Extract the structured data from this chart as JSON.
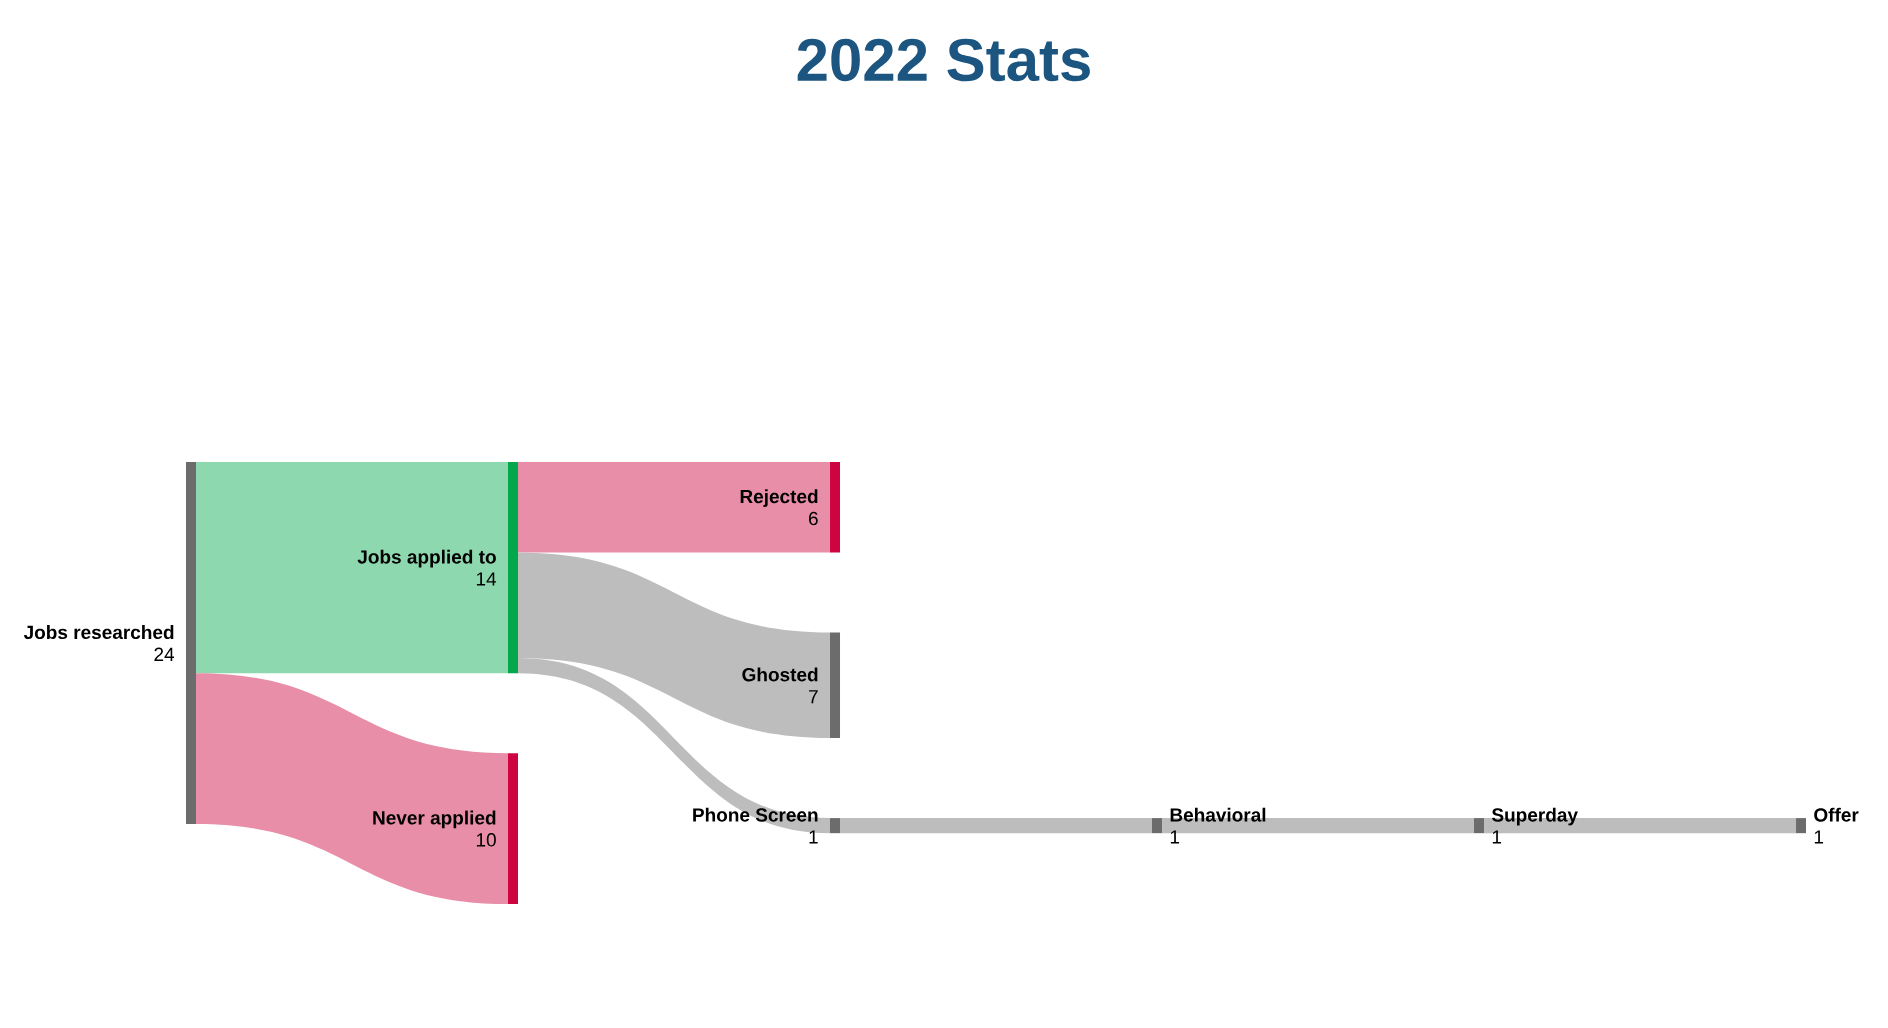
{
  "chart_data": {
    "type": "other",
    "title": "2022 Stats",
    "categories": [
      "Jobs researched",
      "Jobs applied to",
      "Never applied",
      "Rejected",
      "Ghosted",
      "Phone Screen",
      "Behavioral",
      "Superday",
      "Offer"
    ],
    "values": [
      24,
      14,
      10,
      6,
      7,
      1,
      1,
      1,
      1
    ],
    "value_labels": [
      "24",
      "14",
      "10",
      "6",
      "7",
      "1",
      "1",
      "1",
      "1"
    ],
    "colors": [
      "#bdbdbd",
      "#8dd8ae",
      "#e98ea9",
      "#e98ea9",
      "#bdbdbd",
      "#bdbdbd",
      "#bdbdbd",
      "#bdbdbd",
      "#bdbdbd"
    ]
  }
}
